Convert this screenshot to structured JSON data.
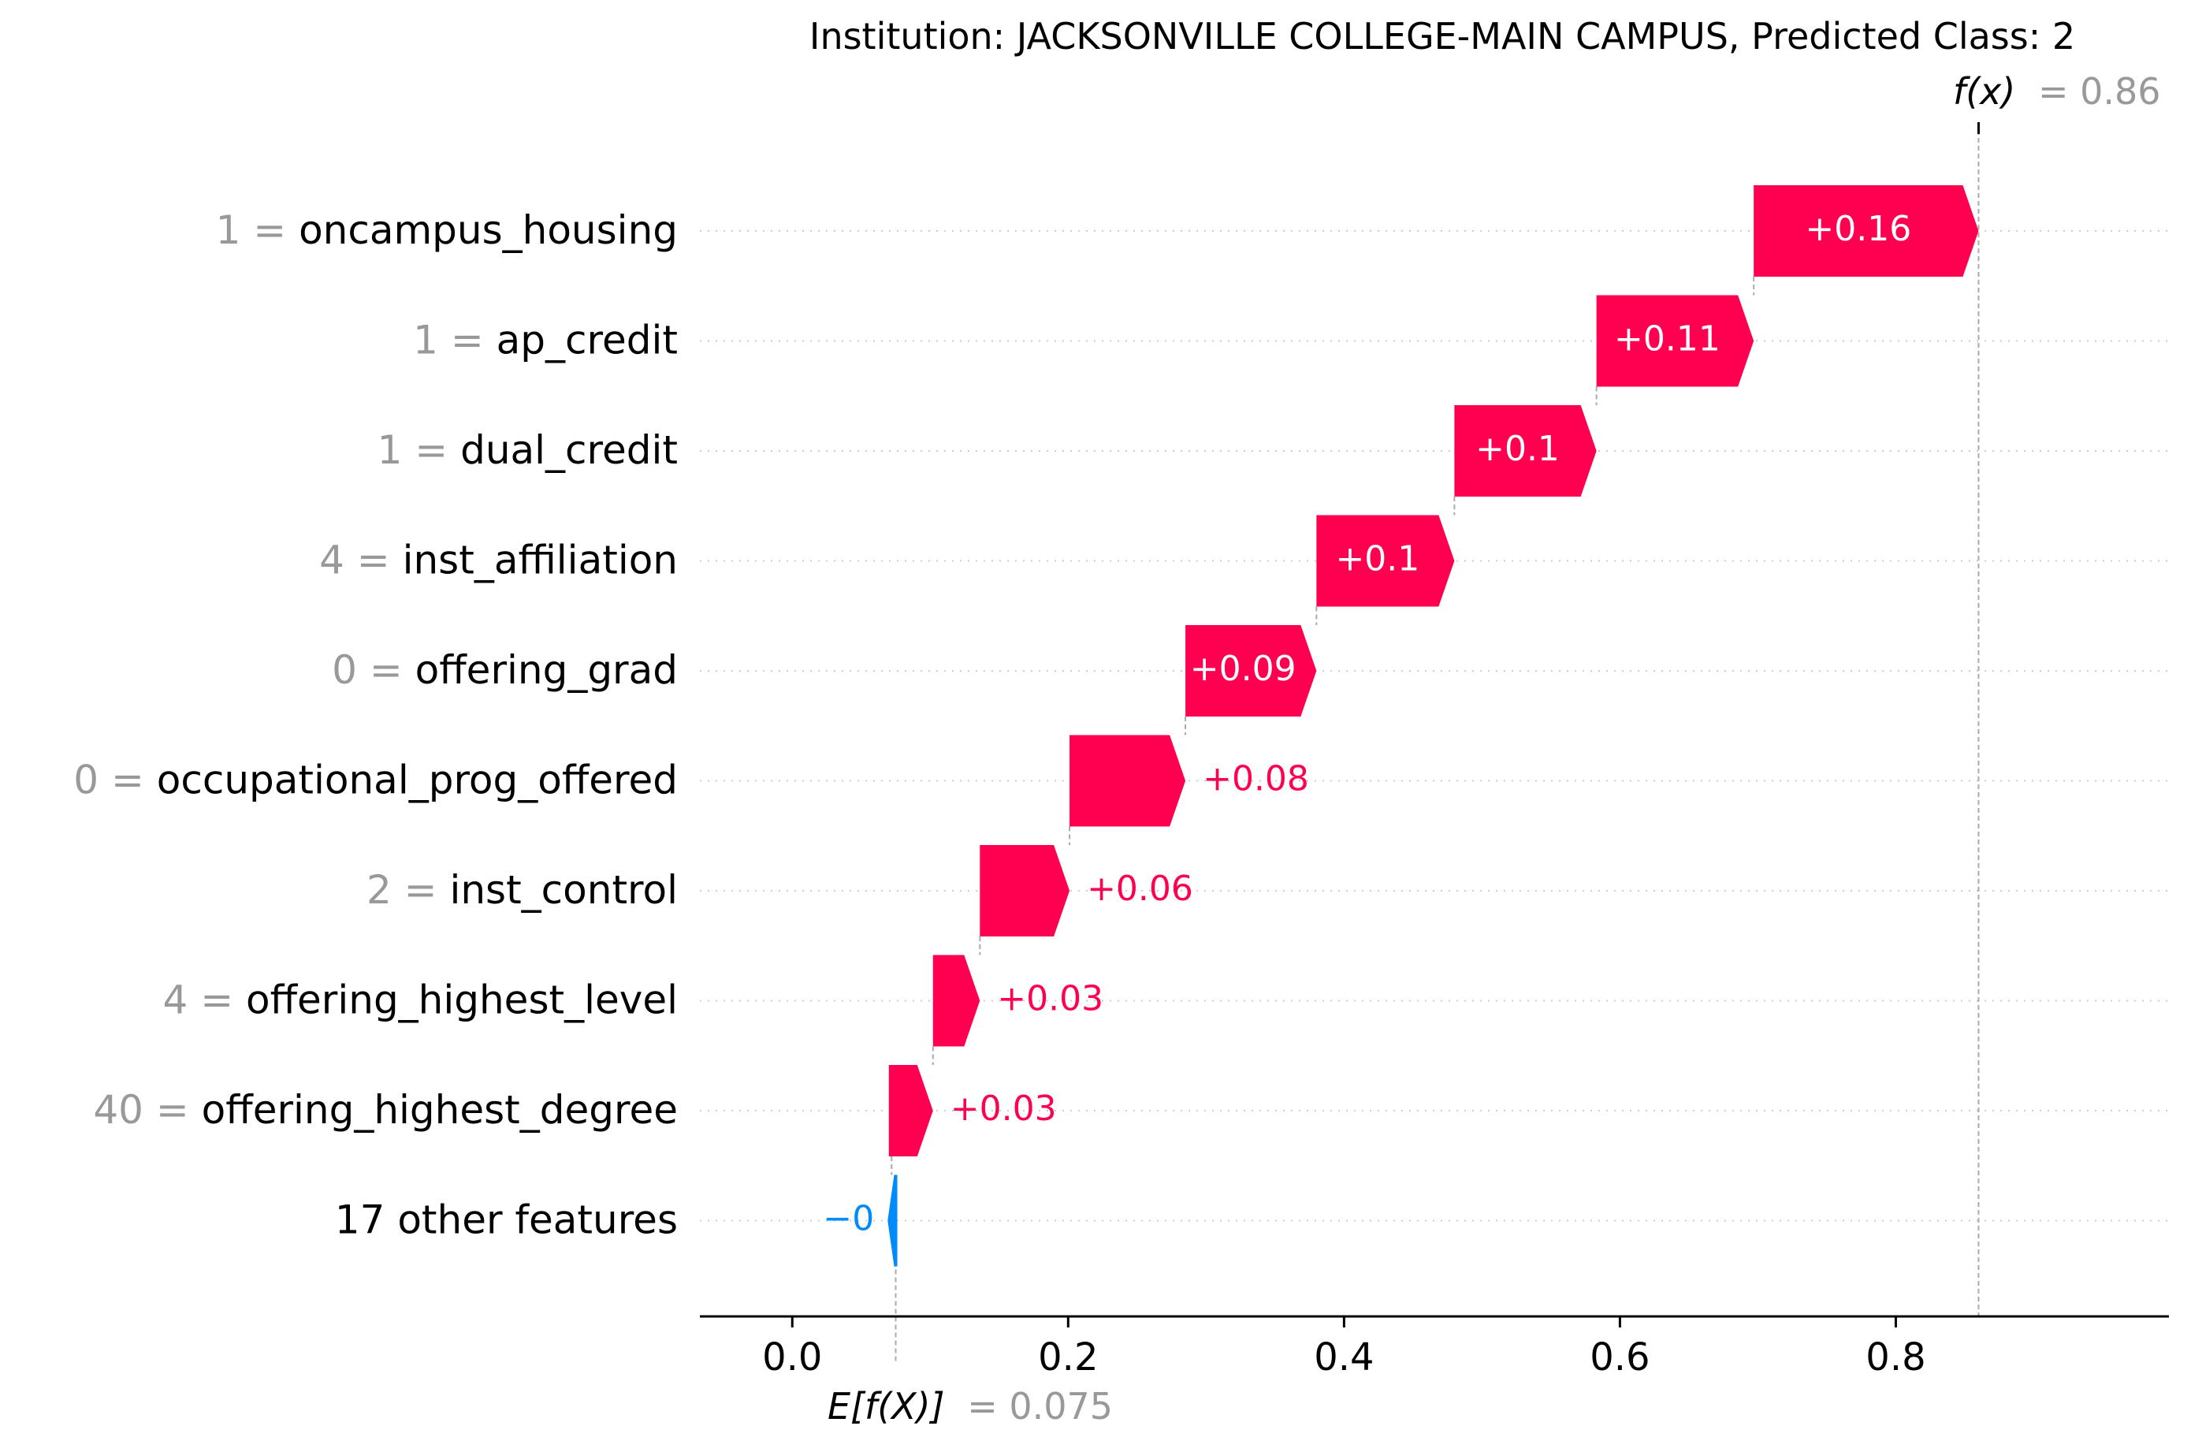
{
  "chart_data": {
    "type": "waterfall",
    "title": "Institution: JACKSONVILLE COLLEGE-MAIN CAMPUS, Predicted Class: 2",
    "fx_label": "f(x)",
    "fx_value": 0.86,
    "fx_value_text": "= 0.86",
    "base_label": "E[f(X)]",
    "base_value": 0.075,
    "base_value_text": "= 0.075",
    "xlim": [
      -0.067,
      0.998
    ],
    "x_ticks": [
      0.0,
      0.2,
      0.4,
      0.6,
      0.8
    ],
    "x_tick_labels": [
      "0.0",
      "0.2",
      "0.4",
      "0.6",
      "0.8"
    ],
    "grid": "dotted horizontal per row",
    "colors": {
      "positive": "#ff0051",
      "negative": "#008bfb",
      "gray": "#999999",
      "text": "#000000"
    },
    "features": [
      {
        "value": "1",
        "name": "oncampus_housing",
        "start": 0.697,
        "end": 0.86,
        "label": "+0.16"
      },
      {
        "value": "1",
        "name": "ap_credit",
        "start": 0.583,
        "end": 0.697,
        "label": "+0.11"
      },
      {
        "value": "1",
        "name": "dual_credit",
        "start": 0.48,
        "end": 0.583,
        "label": "+0.1"
      },
      {
        "value": "4",
        "name": "inst_affiliation",
        "start": 0.38,
        "end": 0.48,
        "label": "+0.1"
      },
      {
        "value": "0",
        "name": "offering_grad",
        "start": 0.285,
        "end": 0.38,
        "label": "+0.09"
      },
      {
        "value": "0",
        "name": "occupational_prog_offered",
        "start": 0.201,
        "end": 0.285,
        "label": "+0.08"
      },
      {
        "value": "2",
        "name": "inst_control",
        "start": 0.136,
        "end": 0.201,
        "label": "+0.06"
      },
      {
        "value": "4",
        "name": "offering_highest_level",
        "start": 0.102,
        "end": 0.136,
        "label": "+0.03"
      },
      {
        "value": "40",
        "name": "offering_highest_degree",
        "start": 0.07,
        "end": 0.102,
        "label": "+0.03"
      },
      {
        "value": "",
        "name": "17 other features",
        "start": 0.075,
        "end": 0.072,
        "label": "−0"
      }
    ]
  }
}
